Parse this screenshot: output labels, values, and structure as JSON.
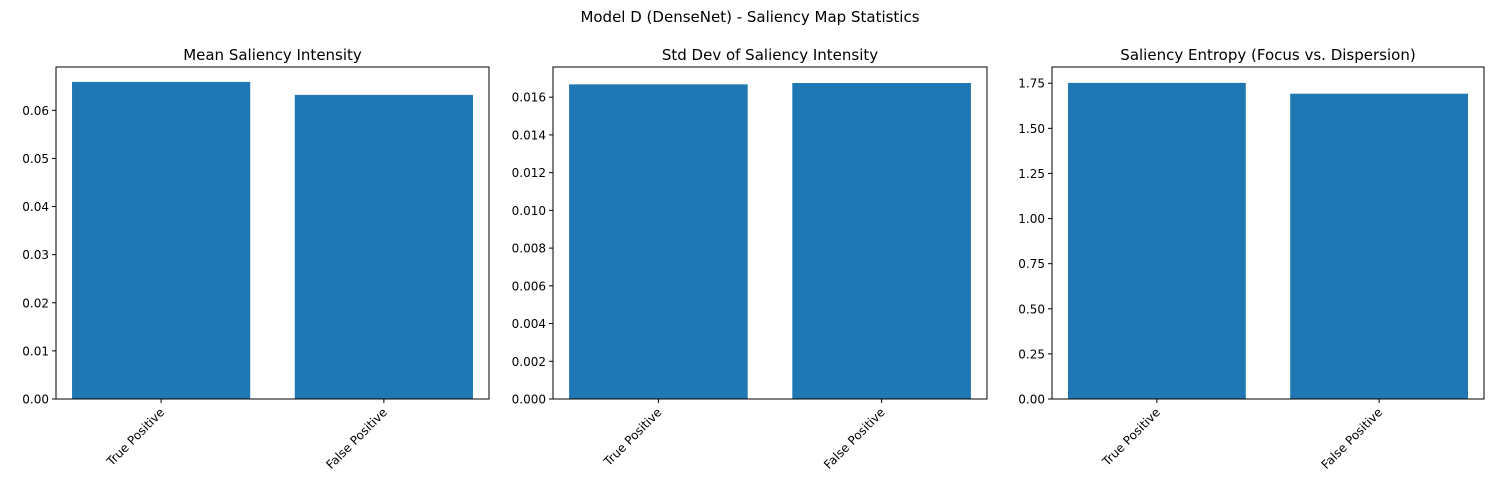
{
  "suptitle": "Model D (DenseNet) - Saliency Map Statistics",
  "bar_color": "#1f77b4",
  "chart_data": [
    {
      "type": "bar",
      "title": "Mean Saliency Intensity",
      "categories": [
        "True Positive",
        "False Positive"
      ],
      "values": [
        0.0659,
        0.0632
      ],
      "ylim": [
        0,
        0.069
      ],
      "yticks": [
        0.0,
        0.01,
        0.02,
        0.03,
        0.04,
        0.05,
        0.06
      ],
      "ytick_labels": [
        "0.00",
        "0.01",
        "0.02",
        "0.03",
        "0.04",
        "0.05",
        "0.06"
      ],
      "xlabel": "",
      "ylabel": "",
      "grid": false,
      "legend": false
    },
    {
      "type": "bar",
      "title": "Std Dev of Saliency Intensity",
      "categories": [
        "True Positive",
        "False Positive"
      ],
      "values": [
        0.01668,
        0.01675
      ],
      "ylim": [
        0,
        0.0176
      ],
      "yticks": [
        0.0,
        0.002,
        0.004,
        0.006,
        0.008,
        0.01,
        0.012,
        0.014,
        0.016
      ],
      "ytick_labels": [
        "0.000",
        "0.002",
        "0.004",
        "0.006",
        "0.008",
        "0.010",
        "0.012",
        "0.014",
        "0.016"
      ],
      "xlabel": "",
      "ylabel": "",
      "grid": false,
      "legend": false
    },
    {
      "type": "bar",
      "title": "Saliency Entropy (Focus vs. Dispersion)",
      "categories": [
        "True Positive",
        "False Positive"
      ],
      "values": [
        1.752,
        1.692
      ],
      "ylim": [
        0,
        1.84
      ],
      "yticks": [
        0.0,
        0.25,
        0.5,
        0.75,
        1.0,
        1.25,
        1.5,
        1.75
      ],
      "ytick_labels": [
        "0.00",
        "0.25",
        "0.50",
        "0.75",
        "1.00",
        "1.25",
        "1.50",
        "1.75"
      ],
      "xlabel": "",
      "ylabel": "",
      "grid": false,
      "legend": false
    }
  ]
}
